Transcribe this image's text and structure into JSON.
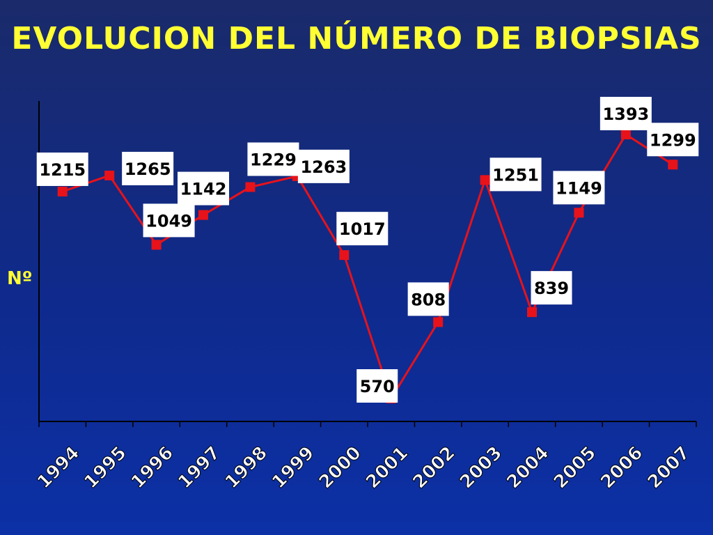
{
  "title": "EVOLUCION DEL NÚMERO DE BIOPSIAS",
  "colors": {
    "background": "#0f2a8c",
    "title": "#ffff33",
    "line": "#e8121a",
    "axis": "#000000",
    "label_box": "#ffffff",
    "tick_label": "#ffffff"
  },
  "chart_data": {
    "type": "line",
    "title": "EVOLUCION DEL NÚMERO DE BIOPSIAS",
    "xlabel": "",
    "ylabel": "Nº",
    "categories": [
      "1994",
      "1995",
      "1996",
      "1997",
      "1998",
      "1999",
      "2000",
      "2001",
      "2002",
      "2003",
      "2004",
      "2005",
      "2006",
      "2007"
    ],
    "series": [
      {
        "values": [
          1215,
          1265,
          1049,
          1142,
          1229,
          1263,
          1017,
          570,
          808,
          1251,
          839,
          1149,
          1393,
          1299
        ]
      }
    ],
    "legend": "none",
    "grid": false
  }
}
